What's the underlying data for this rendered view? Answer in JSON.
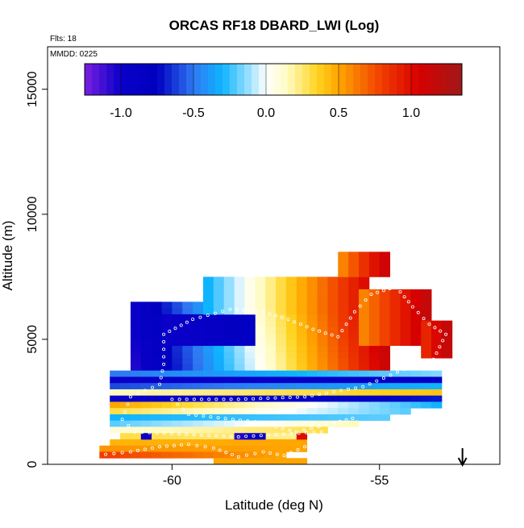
{
  "chart_data": {
    "type": "heatmap",
    "title": "ORCAS RF18 DBARD_LWI (Log)",
    "notes": [
      "Flts: 18",
      "MMDD: 0225"
    ],
    "xlabel": "Latitude (deg N)",
    "ylabel": "Altitude (m)",
    "xlim": [
      -63,
      -52.1
    ],
    "ylim": [
      0,
      16700
    ],
    "x_ticks": [
      -60,
      -55
    ],
    "x_tick_labels": [
      "-60",
      "-55"
    ],
    "y_ticks": [
      0,
      5000,
      10000,
      15000
    ],
    "y_tick_labels": [
      "0",
      "5000",
      "10000",
      "15000"
    ],
    "cell_width_deg": 0.25,
    "cell_height_m": 250,
    "colorbar": {
      "range": [
        -1.25,
        1.35
      ],
      "ticks": [
        -1.0,
        -0.5,
        0.0,
        0.5,
        1.0
      ],
      "tick_labels": [
        "-1.0",
        "-0.5",
        "0.0",
        "0.5",
        "1.0"
      ],
      "stops": [
        {
          "v": -1.25,
          "c": "#7a1fe0"
        },
        {
          "v": -1.0,
          "c": "#0a00c8"
        },
        {
          "v": -0.75,
          "c": "#0000c0"
        },
        {
          "v": -0.5,
          "c": "#2f78f2"
        },
        {
          "v": -0.3,
          "c": "#0fb4ff"
        },
        {
          "v": -0.1,
          "c": "#a8e4ff"
        },
        {
          "v": 0.0,
          "c": "#ffffff"
        },
        {
          "v": 0.15,
          "c": "#fffbc0"
        },
        {
          "v": 0.35,
          "c": "#ffd420"
        },
        {
          "v": 0.5,
          "c": "#ffa500"
        },
        {
          "v": 0.8,
          "c": "#f03c00"
        },
        {
          "v": 1.05,
          "c": "#d80000"
        },
        {
          "v": 1.35,
          "c": "#a01818"
        }
      ]
    },
    "regions": [
      {
        "x": [
          -61.0,
          -54.75
        ],
        "y": [
          3750,
          6500
        ],
        "v": [
          -1.05,
          1.1
        ],
        "gx": 0.6,
        "gy": 0.1
      },
      {
        "x": [
          -60.25,
          -58.0
        ],
        "y": [
          4750,
          6000
        ],
        "v": [
          -1.0,
          -0.8
        ],
        "gx": 0,
        "gy": 0
      },
      {
        "x": [
          -59.25,
          -55.25
        ],
        "y": [
          6000,
          7500
        ],
        "v": [
          -0.3,
          1.0
        ],
        "gx": 0.5,
        "gy": 0
      },
      {
        "x": [
          -56.0,
          -54.75
        ],
        "y": [
          7500,
          8500
        ],
        "v": [
          0.6,
          1.1
        ],
        "gx": 0,
        "gy": 0
      },
      {
        "x": [
          -55.5,
          -53.75
        ],
        "y": [
          4750,
          7000
        ],
        "v": [
          0.6,
          1.15
        ],
        "gx": 0,
        "gy": 0
      },
      {
        "x": [
          -54.0,
          -53.25
        ],
        "y": [
          4250,
          5750
        ],
        "v": [
          0.9,
          1.15
        ],
        "gx": 0,
        "gy": 0
      },
      {
        "x": [
          -61.5,
          -53.5
        ],
        "y": [
          3500,
          3750
        ],
        "v": [
          -0.5,
          -0.15
        ],
        "gx": 0,
        "gy": 0
      },
      {
        "x": [
          -61.5,
          -53.5
        ],
        "y": [
          3250,
          3500
        ],
        "v": [
          -1.0,
          -0.85
        ],
        "gx": 0,
        "gy": 0
      },
      {
        "x": [
          -61.5,
          -53.5
        ],
        "y": [
          3000,
          3250
        ],
        "v": [
          -0.6,
          -0.3
        ],
        "gx": 0,
        "gy": 0
      },
      {
        "x": [
          -61.5,
          -53.5
        ],
        "y": [
          2750,
          3000
        ],
        "v": [
          0.15,
          0.4
        ],
        "gx": 0,
        "gy": 0
      },
      {
        "x": [
          -61.5,
          -53.5
        ],
        "y": [
          2500,
          2750
        ],
        "v": [
          -1.0,
          -0.7
        ],
        "gx": 0,
        "gy": 0
      },
      {
        "x": [
          -61.5,
          -53.5
        ],
        "y": [
          2250,
          2500
        ],
        "v": [
          0.5,
          -0.3
        ],
        "gx": 0,
        "gy": 0
      },
      {
        "x": [
          -61.5,
          -54.25
        ],
        "y": [
          2000,
          2250
        ],
        "v": [
          0.3,
          -0.2
        ],
        "gx": 0,
        "gy": 0
      },
      {
        "x": [
          -61.5,
          -54.75
        ],
        "y": [
          1750,
          2000
        ],
        "v": [
          -0.3,
          -0.2
        ],
        "gx": 0,
        "gy": 0
      },
      {
        "x": [
          -61.5,
          -55.5
        ],
        "y": [
          1500,
          1750
        ],
        "v": [
          -0.2,
          0.15
        ],
        "gx": 0,
        "gy": 0
      },
      {
        "x": [
          -61.5,
          -56.25
        ],
        "y": [
          1250,
          1500
        ],
        "v": [
          0.1,
          0.3
        ],
        "gx": 0,
        "gy": 0
      },
      {
        "x": [
          -61.25,
          -56.75
        ],
        "y": [
          1000,
          1250
        ],
        "v": [
          0.3,
          0.2
        ],
        "gx": 0,
        "gy": 0
      },
      {
        "x": [
          -61.5,
          -56.75
        ],
        "y": [
          750,
          1000
        ],
        "v": [
          0.45,
          0.5
        ],
        "gx": 0,
        "gy": 0
      },
      {
        "x": [
          -61.75,
          -56.75
        ],
        "y": [
          500,
          750
        ],
        "v": [
          0.55,
          0.5
        ],
        "gx": 0,
        "gy": 0
      },
      {
        "x": [
          -61.75,
          -57.25
        ],
        "y": [
          250,
          500
        ],
        "v": [
          0.8,
          0.5
        ],
        "gx": 0,
        "gy": 0
      },
      {
        "x": [
          -59.0,
          -56.75
        ],
        "y": [
          0,
          250
        ],
        "v": [
          0.5,
          0.5
        ],
        "gx": 0,
        "gy": 0
      },
      {
        "x": [
          -60.75,
          -60.5
        ],
        "y": [
          1000,
          1250
        ],
        "v": [
          -1.0,
          -1.0
        ],
        "gx": 0,
        "gy": 0
      },
      {
        "x": [
          -58.5,
          -57.75
        ],
        "y": [
          1000,
          1250
        ],
        "v": [
          -1.05,
          -0.9
        ],
        "gx": 0,
        "gy": 0
      },
      {
        "x": [
          -57.0,
          -56.75
        ],
        "y": [
          1000,
          1250
        ],
        "v": [
          1.0,
          1.0
        ],
        "gx": 0,
        "gy": 0
      }
    ],
    "flight_track": [
      {
        "x": -61.6,
        "y": 400
      },
      {
        "x": -61.0,
        "y": 500
      },
      {
        "x": -60.3,
        "y": 700
      },
      {
        "x": -59.6,
        "y": 800
      },
      {
        "x": -59.0,
        "y": 650
      },
      {
        "x": -58.4,
        "y": 300
      },
      {
        "x": -57.8,
        "y": 500
      },
      {
        "x": -57.3,
        "y": 350
      },
      {
        "x": -56.8,
        "y": 700
      },
      {
        "x": -56.4,
        "y": 1300
      },
      {
        "x": -58.4,
        "y": 1100
      },
      {
        "x": -60.9,
        "y": 1300
      },
      {
        "x": -61.2,
        "y": 1800
      },
      {
        "x": -61.0,
        "y": 2700
      },
      {
        "x": -60.3,
        "y": 3200
      },
      {
        "x": -60.2,
        "y": 4000
      },
      {
        "x": -60.2,
        "y": 5200
      },
      {
        "x": -59.5,
        "y": 5800
      },
      {
        "x": -58.6,
        "y": 6200
      },
      {
        "x": -57.8,
        "y": 6100
      },
      {
        "x": -57.2,
        "y": 5800
      },
      {
        "x": -56.6,
        "y": 5400
      },
      {
        "x": -56.0,
        "y": 5100
      },
      {
        "x": -55.6,
        "y": 6100
      },
      {
        "x": -55.2,
        "y": 6800
      },
      {
        "x": -54.6,
        "y": 7100
      },
      {
        "x": -54.2,
        "y": 6300
      },
      {
        "x": -53.8,
        "y": 5600
      },
      {
        "x": -53.4,
        "y": 5200
      },
      {
        "x": -53.7,
        "y": 4200
      },
      {
        "x": -54.4,
        "y": 3800
      },
      {
        "x": -55.4,
        "y": 3100
      },
      {
        "x": -56.8,
        "y": 2700
      },
      {
        "x": -58.4,
        "y": 2600
      },
      {
        "x": -60.0,
        "y": 2600
      },
      {
        "x": -59.6,
        "y": 2000
      },
      {
        "x": -58.0,
        "y": 1700
      },
      {
        "x": -57.0,
        "y": 1300
      },
      {
        "x": -56.1,
        "y": 1650
      },
      {
        "x": -55.5,
        "y": 1900
      }
    ],
    "marker": {
      "x": -53.0,
      "type": "arrow-down"
    }
  }
}
